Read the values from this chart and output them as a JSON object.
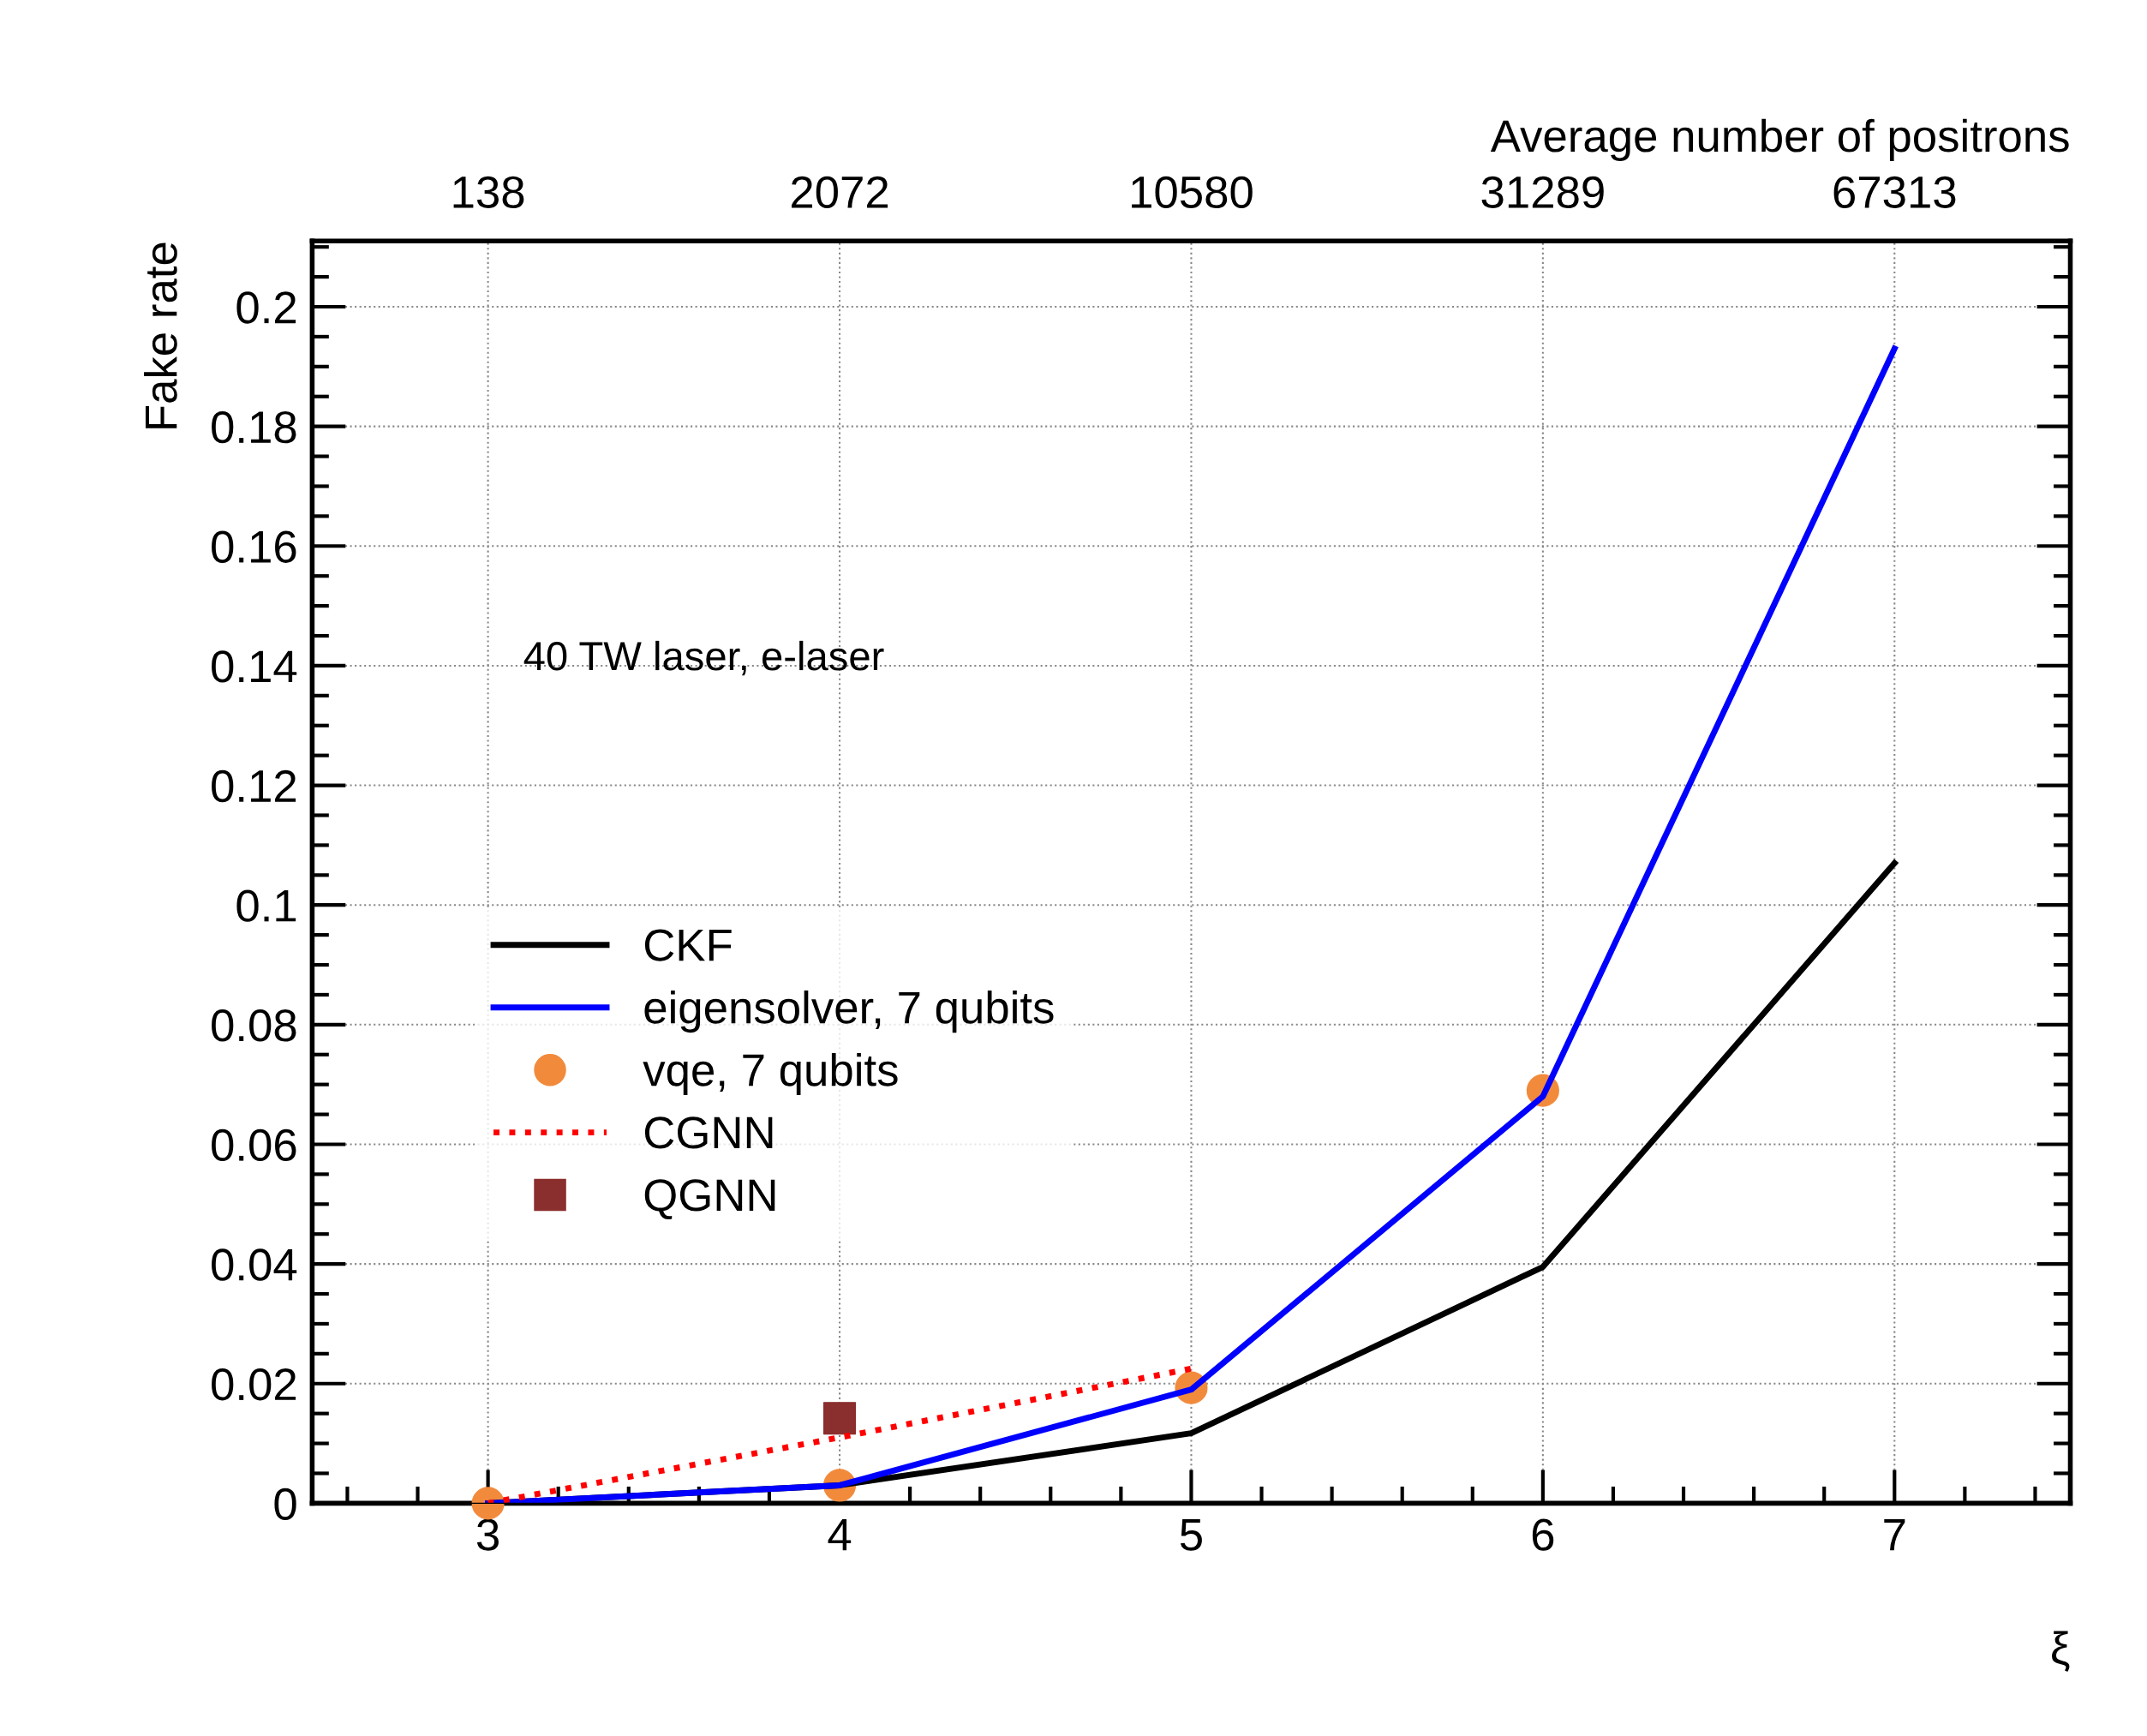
{
  "chart_data": {
    "type": "line",
    "xlabel": "ξ",
    "ylabel": "Fake rate",
    "x2label": "Average number of positrons",
    "xlim": [
      2.5,
      7.5
    ],
    "ylim": [
      0,
      0.211
    ],
    "xticks": [
      3,
      4,
      5,
      6,
      7
    ],
    "yticks": [
      0,
      0.02,
      0.04,
      0.06,
      0.08,
      0.1,
      0.12,
      0.14,
      0.16,
      0.18,
      0.2
    ],
    "grid": true,
    "legend": "left",
    "annotations": [
      "40 TW laser, e-laser",
      "138",
      "2072",
      "10580",
      "31289",
      "67313"
    ],
    "series": [
      {
        "name": "CKF",
        "color": "#000000",
        "line_style": "solid",
        "x": [
          3,
          4,
          5,
          6,
          7
        ],
        "values": [
          0,
          0.003,
          0.0117,
          0.0395,
          0.107
        ]
      },
      {
        "name": "eigensolver, 7 qubits",
        "color": "#0000ff",
        "line_style": "solid",
        "x": [
          3,
          4,
          5,
          6,
          7
        ],
        "values": [
          0,
          0.003,
          0.019,
          0.068,
          0.193
        ]
      },
      {
        "name": "vqe, 7 qubits",
        "type": "scatter",
        "color": "#f28a3c",
        "marker": "circle",
        "x": [
          3,
          4,
          5,
          6
        ],
        "values": [
          0,
          0.003,
          0.0193,
          0.069
        ]
      },
      {
        "name": "CGNN",
        "color": "#ff0000",
        "line_style": "dotted",
        "x": [
          3,
          4,
          5
        ],
        "values": [
          0,
          0.011,
          0.0225
        ]
      },
      {
        "name": "QGNN",
        "type": "scatter",
        "color": "#8b2e2e",
        "marker": "square",
        "x": [
          4
        ],
        "values": [
          0.0142
        ]
      }
    ]
  }
}
